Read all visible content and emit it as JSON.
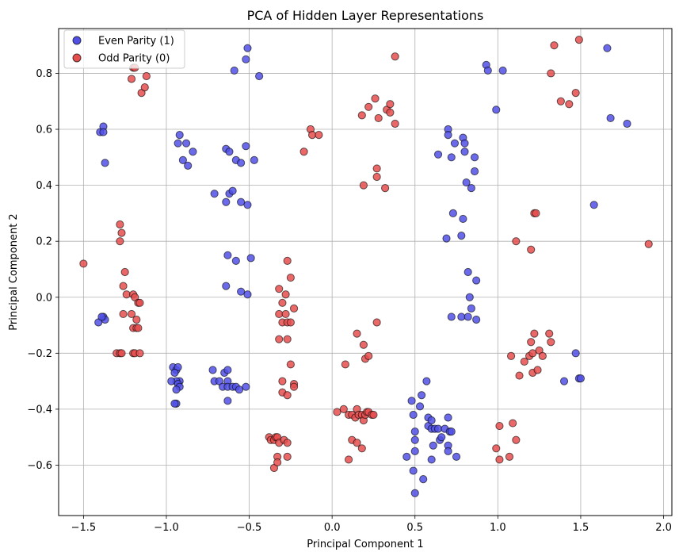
{
  "chart_data": {
    "type": "scatter",
    "title": "PCA of Hidden Layer Representations",
    "xlabel": "Principal Component 1",
    "ylabel": "Principal Component 2",
    "xlim": [
      -1.65,
      2.05
    ],
    "ylim": [
      -0.78,
      0.96
    ],
    "xticks": [
      -1.5,
      -1.0,
      -0.5,
      0.0,
      0.5,
      1.0,
      1.5,
      2.0
    ],
    "xtick_labels": [
      "−1.5",
      "−1.0",
      "−0.5",
      "0.0",
      "0.5",
      "1.0",
      "1.5",
      "2.0"
    ],
    "yticks": [
      -0.6,
      -0.4,
      -0.2,
      0.0,
      0.2,
      0.4,
      0.6,
      0.8
    ],
    "ytick_labels": [
      "−0.6",
      "−0.4",
      "−0.2",
      "0.0",
      "0.2",
      "0.4",
      "0.6",
      "0.8"
    ],
    "grid": true,
    "legend_position": "top-left",
    "series": [
      {
        "name": "Even Parity (1)",
        "color": "#5050e6",
        "points": [
          [
            -1.4,
            0.59
          ],
          [
            -1.38,
            0.61
          ],
          [
            -1.38,
            0.59
          ],
          [
            -1.37,
            0.48
          ],
          [
            -1.41,
            -0.09
          ],
          [
            -1.38,
            -0.07
          ],
          [
            -1.37,
            -0.08
          ],
          [
            -1.39,
            -0.07
          ],
          [
            -0.92,
            0.58
          ],
          [
            -0.88,
            0.55
          ],
          [
            -0.93,
            0.55
          ],
          [
            -0.9,
            0.49
          ],
          [
            -0.87,
            0.47
          ],
          [
            -0.84,
            0.52
          ],
          [
            -0.51,
            0.89
          ],
          [
            -0.52,
            0.85
          ],
          [
            -0.59,
            0.81
          ],
          [
            -0.44,
            0.79
          ],
          [
            -0.64,
            0.53
          ],
          [
            -0.62,
            0.52
          ],
          [
            -0.58,
            0.49
          ],
          [
            -0.55,
            0.48
          ],
          [
            -0.52,
            0.54
          ],
          [
            -0.47,
            0.49
          ],
          [
            -0.71,
            0.37
          ],
          [
            -0.64,
            0.34
          ],
          [
            -0.62,
            0.37
          ],
          [
            -0.6,
            0.38
          ],
          [
            -0.55,
            0.34
          ],
          [
            -0.51,
            0.33
          ],
          [
            -0.63,
            0.15
          ],
          [
            -0.58,
            0.13
          ],
          [
            -0.64,
            0.04
          ],
          [
            -0.55,
            0.02
          ],
          [
            -0.51,
            0.01
          ],
          [
            -0.49,
            0.14
          ],
          [
            -0.96,
            -0.25
          ],
          [
            -0.94,
            -0.26
          ],
          [
            -0.93,
            -0.25
          ],
          [
            -0.95,
            -0.27
          ],
          [
            -0.92,
            -0.3
          ],
          [
            -0.94,
            -0.3
          ],
          [
            -0.97,
            -0.3
          ],
          [
            -0.93,
            -0.31
          ],
          [
            -0.92,
            -0.32
          ],
          [
            -0.94,
            -0.33
          ],
          [
            -0.94,
            -0.38
          ],
          [
            -0.95,
            -0.38
          ],
          [
            -0.72,
            -0.26
          ],
          [
            -0.65,
            -0.27
          ],
          [
            -0.63,
            -0.26
          ],
          [
            -0.71,
            -0.3
          ],
          [
            -0.68,
            -0.3
          ],
          [
            -0.66,
            -0.32
          ],
          [
            -0.63,
            -0.3
          ],
          [
            -0.63,
            -0.32
          ],
          [
            -0.6,
            -0.32
          ],
          [
            -0.58,
            -0.32
          ],
          [
            -0.56,
            -0.33
          ],
          [
            -0.52,
            -0.32
          ],
          [
            -0.63,
            -0.37
          ],
          [
            0.45,
            -0.57
          ],
          [
            0.48,
            -0.37
          ],
          [
            0.49,
            -0.42
          ],
          [
            0.49,
            -0.62
          ],
          [
            0.5,
            -0.48
          ],
          [
            0.5,
            -0.51
          ],
          [
            0.5,
            -0.55
          ],
          [
            0.5,
            -0.7
          ],
          [
            0.53,
            -0.39
          ],
          [
            0.54,
            -0.35
          ],
          [
            0.55,
            -0.65
          ],
          [
            0.57,
            -0.3
          ],
          [
            0.58,
            -0.43
          ],
          [
            0.58,
            -0.46
          ],
          [
            0.6,
            -0.44
          ],
          [
            0.6,
            -0.47
          ],
          [
            0.61,
            -0.53
          ],
          [
            0.6,
            -0.58
          ],
          [
            0.62,
            -0.47
          ],
          [
            0.64,
            -0.47
          ],
          [
            0.65,
            -0.51
          ],
          [
            0.66,
            -0.5
          ],
          [
            0.68,
            -0.47
          ],
          [
            0.7,
            -0.53
          ],
          [
            0.7,
            -0.43
          ],
          [
            0.7,
            -0.55
          ],
          [
            0.71,
            -0.48
          ],
          [
            0.72,
            -0.48
          ],
          [
            0.75,
            -0.57
          ],
          [
            0.64,
            0.51
          ],
          [
            0.69,
            0.21
          ],
          [
            0.7,
            0.6
          ],
          [
            0.7,
            0.58
          ],
          [
            0.72,
            0.5
          ],
          [
            0.73,
            0.3
          ],
          [
            0.74,
            0.55
          ],
          [
            0.78,
            0.22
          ],
          [
            0.79,
            0.57
          ],
          [
            0.79,
            0.28
          ],
          [
            0.8,
            0.55
          ],
          [
            0.8,
            0.52
          ],
          [
            0.81,
            0.41
          ],
          [
            0.82,
            0.09
          ],
          [
            0.83,
            0.0
          ],
          [
            0.84,
            -0.04
          ],
          [
            0.84,
            0.39
          ],
          [
            0.86,
            0.45
          ],
          [
            0.86,
            0.5
          ],
          [
            0.87,
            0.06
          ],
          [
            0.87,
            -0.08
          ],
          [
            0.72,
            -0.07
          ],
          [
            0.78,
            -0.07
          ],
          [
            0.82,
            -0.07
          ],
          [
            0.93,
            0.83
          ],
          [
            0.94,
            0.81
          ],
          [
            0.99,
            0.67
          ],
          [
            1.03,
            0.81
          ],
          [
            1.4,
            -0.3
          ],
          [
            1.47,
            -0.2
          ],
          [
            1.49,
            -0.29
          ],
          [
            1.5,
            -0.29
          ],
          [
            1.58,
            0.33
          ],
          [
            1.66,
            0.89
          ],
          [
            1.68,
            0.64
          ],
          [
            1.78,
            0.62
          ]
        ]
      },
      {
        "name": "Odd Parity (0)",
        "color": "#e64d4d",
        "points": [
          [
            -1.5,
            0.12
          ],
          [
            -1.28,
            0.26
          ],
          [
            -1.28,
            0.2
          ],
          [
            -1.27,
            0.23
          ],
          [
            -1.25,
            0.09
          ],
          [
            -1.26,
            0.04
          ],
          [
            -1.24,
            0.01
          ],
          [
            -1.2,
            0.01
          ],
          [
            -1.21,
            -0.06
          ],
          [
            -1.19,
            0.0
          ],
          [
            -1.17,
            -0.02
          ],
          [
            -1.16,
            -0.02
          ],
          [
            -1.18,
            -0.08
          ],
          [
            -1.2,
            -0.11
          ],
          [
            -1.18,
            -0.11
          ],
          [
            -1.17,
            -0.11
          ],
          [
            -1.26,
            -0.06
          ],
          [
            -1.3,
            -0.2
          ],
          [
            -1.28,
            -0.2
          ],
          [
            -1.27,
            -0.2
          ],
          [
            -1.2,
            -0.2
          ],
          [
            -1.19,
            -0.2
          ],
          [
            -1.16,
            -0.2
          ],
          [
            -1.21,
            0.78
          ],
          [
            -1.2,
            0.82
          ],
          [
            -1.19,
            0.82
          ],
          [
            -1.15,
            0.73
          ],
          [
            -1.13,
            0.75
          ],
          [
            -1.12,
            0.79
          ],
          [
            -0.17,
            0.52
          ],
          [
            -0.13,
            0.6
          ],
          [
            -0.12,
            0.58
          ],
          [
            -0.08,
            0.58
          ],
          [
            0.18,
            0.65
          ],
          [
            0.19,
            0.4
          ],
          [
            0.22,
            0.68
          ],
          [
            0.26,
            0.71
          ],
          [
            0.27,
            0.46
          ],
          [
            0.27,
            0.43
          ],
          [
            0.28,
            0.64
          ],
          [
            0.32,
            0.39
          ],
          [
            0.33,
            0.67
          ],
          [
            0.35,
            0.69
          ],
          [
            0.35,
            0.66
          ],
          [
            0.38,
            0.62
          ],
          [
            0.38,
            0.86
          ],
          [
            -0.32,
            0.03
          ],
          [
            -0.3,
            -0.02
          ],
          [
            -0.28,
            0.01
          ],
          [
            -0.32,
            -0.06
          ],
          [
            -0.3,
            -0.09
          ],
          [
            -0.28,
            -0.06
          ],
          [
            -0.27,
            -0.09
          ],
          [
            -0.25,
            -0.09
          ],
          [
            -0.23,
            -0.04
          ],
          [
            -0.27,
            0.13
          ],
          [
            -0.25,
            0.07
          ],
          [
            -0.32,
            -0.15
          ],
          [
            -0.27,
            -0.15
          ],
          [
            -0.25,
            -0.24
          ],
          [
            -0.3,
            -0.3
          ],
          [
            -0.3,
            -0.34
          ],
          [
            -0.27,
            -0.35
          ],
          [
            -0.23,
            -0.31
          ],
          [
            -0.23,
            -0.32
          ],
          [
            -0.38,
            -0.5
          ],
          [
            -0.37,
            -0.51
          ],
          [
            -0.35,
            -0.51
          ],
          [
            -0.34,
            -0.5
          ],
          [
            -0.33,
            -0.5
          ],
          [
            -0.32,
            -0.52
          ],
          [
            -0.29,
            -0.51
          ],
          [
            -0.27,
            -0.52
          ],
          [
            -0.35,
            -0.61
          ],
          [
            -0.33,
            -0.57
          ],
          [
            -0.33,
            -0.59
          ],
          [
            -0.27,
            -0.57
          ],
          [
            0.03,
            -0.41
          ],
          [
            0.07,
            -0.4
          ],
          [
            0.1,
            -0.42
          ],
          [
            0.12,
            -0.42
          ],
          [
            0.14,
            -0.43
          ],
          [
            0.15,
            -0.4
          ],
          [
            0.16,
            -0.42
          ],
          [
            0.18,
            -0.42
          ],
          [
            0.19,
            -0.44
          ],
          [
            0.2,
            -0.42
          ],
          [
            0.21,
            -0.41
          ],
          [
            0.22,
            -0.41
          ],
          [
            0.24,
            -0.42
          ],
          [
            0.25,
            -0.42
          ],
          [
            0.08,
            -0.24
          ],
          [
            0.15,
            -0.13
          ],
          [
            0.19,
            -0.17
          ],
          [
            0.2,
            -0.22
          ],
          [
            0.22,
            -0.21
          ],
          [
            0.27,
            -0.09
          ],
          [
            0.1,
            -0.58
          ],
          [
            0.12,
            -0.51
          ],
          [
            0.15,
            -0.52
          ],
          [
            0.18,
            -0.54
          ],
          [
            0.99,
            -0.54
          ],
          [
            1.01,
            -0.46
          ],
          [
            1.01,
            -0.58
          ],
          [
            1.07,
            -0.57
          ],
          [
            1.09,
            -0.45
          ],
          [
            1.11,
            -0.51
          ],
          [
            1.08,
            -0.21
          ],
          [
            1.13,
            -0.28
          ],
          [
            1.16,
            -0.23
          ],
          [
            1.19,
            -0.21
          ],
          [
            1.2,
            -0.16
          ],
          [
            1.21,
            -0.2
          ],
          [
            1.22,
            -0.13
          ],
          [
            1.25,
            -0.19
          ],
          [
            1.21,
            -0.27
          ],
          [
            1.24,
            -0.26
          ],
          [
            1.27,
            -0.21
          ],
          [
            1.31,
            -0.13
          ],
          [
            1.32,
            -0.16
          ],
          [
            1.11,
            0.2
          ],
          [
            1.2,
            0.17
          ],
          [
            1.22,
            0.3
          ],
          [
            1.23,
            0.3
          ],
          [
            1.32,
            0.8
          ],
          [
            1.34,
            0.9
          ],
          [
            1.38,
            0.7
          ],
          [
            1.43,
            0.69
          ],
          [
            1.47,
            0.73
          ],
          [
            1.49,
            0.92
          ],
          [
            1.91,
            0.19
          ]
        ]
      }
    ]
  }
}
